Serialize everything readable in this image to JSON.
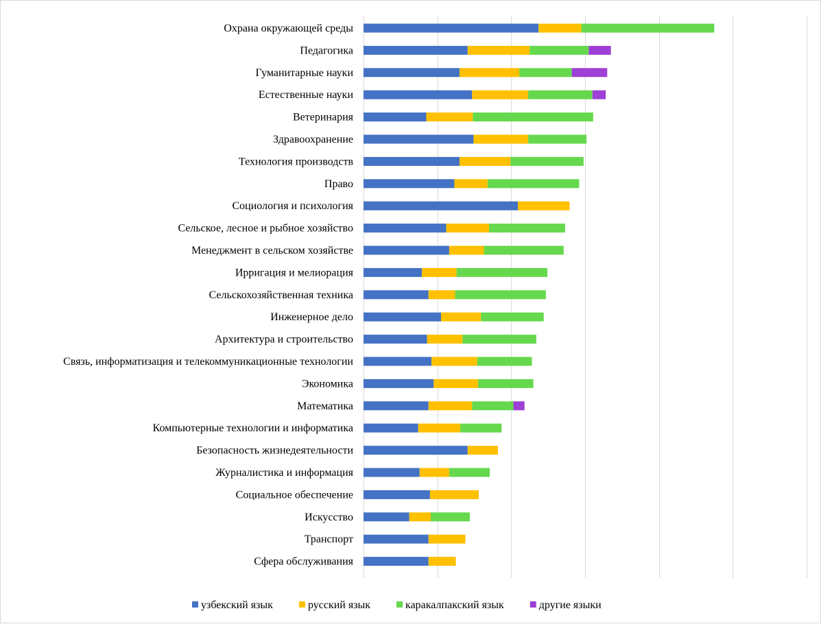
{
  "chart_data": {
    "type": "bar",
    "orientation": "horizontal",
    "stacked": true,
    "title": "",
    "xlabel": "",
    "ylabel": "",
    "xlim": [
      0,
      600
    ],
    "grid": true,
    "legend_position": "bottom",
    "categories": [
      "Охрана окружающей среды",
      "Педагогика",
      "Гуманитарные науки",
      "Естественные науки",
      "Ветеринария",
      "Здравоохранение",
      "Технология производств",
      "Право",
      "Социология и психология",
      "Сельское, лесное и рыбное хозяйство",
      "Менеджмент в сельском хозяйстве",
      "Ирригация и мелиорация",
      "Сельскохозяйственная техника",
      "Инженерное дело",
      "Архитектура и строительство",
      "Связь, информатизация и телекоммуникационные технологии",
      "Экономика",
      "Математика",
      "Компьютерные технологии и информатика",
      "Безопасность жизнедеятельности",
      "Журналистика и информация",
      "Социальное обеспечение",
      "Искусство",
      "Транспорт",
      "Сфера обслуживания"
    ],
    "series": [
      {
        "name": "узбекский язык",
        "color": "#4472C4",
        "values": [
          237,
          141,
          130,
          147,
          85,
          149,
          130,
          123,
          209,
          112,
          116,
          79,
          88,
          105,
          86,
          92,
          95,
          88,
          74,
          141,
          76,
          90,
          62,
          88,
          88
        ]
      },
      {
        "name": "русский язык",
        "color": "#FFC000",
        "values": [
          58,
          84,
          81,
          76,
          63,
          74,
          69,
          45,
          70,
          58,
          47,
          47,
          36,
          54,
          48,
          62,
          60,
          59,
          57,
          41,
          40,
          66,
          29,
          50,
          37
        ]
      },
      {
        "name": "каракалпакский язык",
        "color": "#66D84E",
        "values": [
          180,
          80,
          71,
          87,
          163,
          79,
          99,
          124,
          0,
          103,
          108,
          123,
          123,
          85,
          100,
          74,
          75,
          56,
          56,
          0,
          55,
          0,
          53,
          0,
          0
        ]
      },
      {
        "name": "другие языки",
        "color": "#9E3FD6",
        "values": [
          0,
          30,
          48,
          18,
          0,
          0,
          0,
          0,
          0,
          0,
          0,
          0,
          0,
          0,
          0,
          0,
          0,
          15,
          0,
          0,
          0,
          0,
          0,
          0,
          0
        ]
      }
    ]
  }
}
